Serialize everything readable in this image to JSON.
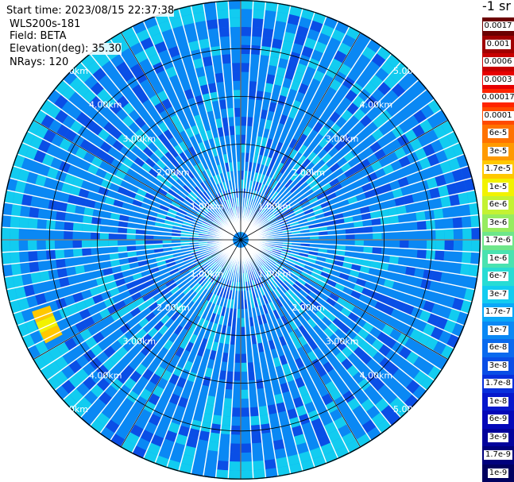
{
  "info": {
    "start_time": "Start time: 2023/08/15 22:37:38",
    "instrument": "WLS200s-181",
    "field": "Field: BETA",
    "elevation": "Elevation(deg): 35.30",
    "nrays": "NRays: 120"
  },
  "rings": {
    "labels": [
      "1.00km",
      "2.00km",
      "3.00km",
      "4.00km",
      "5.00km"
    ],
    "values_km": [
      1,
      2,
      3,
      4,
      5
    ]
  },
  "colorbar": {
    "title": "-1 sr",
    "entries": [
      {
        "label": "0.0017",
        "color": "#6b0000"
      },
      {
        "label": "0.001",
        "color": "#a00000"
      },
      {
        "label": "0.0006",
        "color": "#c80000"
      },
      {
        "label": "0.0003",
        "color": "#e60000"
      },
      {
        "label": "0.00017",
        "color": "#ff2400"
      },
      {
        "label": "0.0001",
        "color": "#ff4a00"
      },
      {
        "label": "6e-5",
        "color": "#ff7200"
      },
      {
        "label": "3e-5",
        "color": "#ff9a00"
      },
      {
        "label": "1.7e-5",
        "color": "#ffc800"
      },
      {
        "label": "1e-5",
        "color": "#f2f200"
      },
      {
        "label": "6e-6",
        "color": "#c4f232"
      },
      {
        "label": "3e-6",
        "color": "#96ec60"
      },
      {
        "label": "1.7e-6",
        "color": "#6ee68a"
      },
      {
        "label": "1e-6",
        "color": "#4ae2b0"
      },
      {
        "label": "6e-7",
        "color": "#28dcd4"
      },
      {
        "label": "3e-7",
        "color": "#12ccf0"
      },
      {
        "label": "1.7e-7",
        "color": "#0aa8f8"
      },
      {
        "label": "1e-7",
        "color": "#0a88f4"
      },
      {
        "label": "6e-8",
        "color": "#0a6aee"
      },
      {
        "label": "3e-8",
        "color": "#0a4ee6"
      },
      {
        "label": "1.7e-8",
        "color": "#0830dc"
      },
      {
        "label": "1e-8",
        "color": "#0618cc"
      },
      {
        "label": "6e-9",
        "color": "#0408b8"
      },
      {
        "label": "3e-9",
        "color": "#02029c"
      },
      {
        "label": "1.7e-9",
        "color": "#00007c"
      },
      {
        "label": "1e-9",
        "color": "#000060"
      }
    ]
  },
  "palette": {
    "background": "#ffffff",
    "range_ring": "#000000",
    "ray_gap": "#ffffff",
    "field_low": "#0a4ee6",
    "field_mid": "#0a88f4",
    "field_high": "#12ccf0",
    "plume_core": "#ffc800",
    "plume_edge": "#f2f200"
  }
}
